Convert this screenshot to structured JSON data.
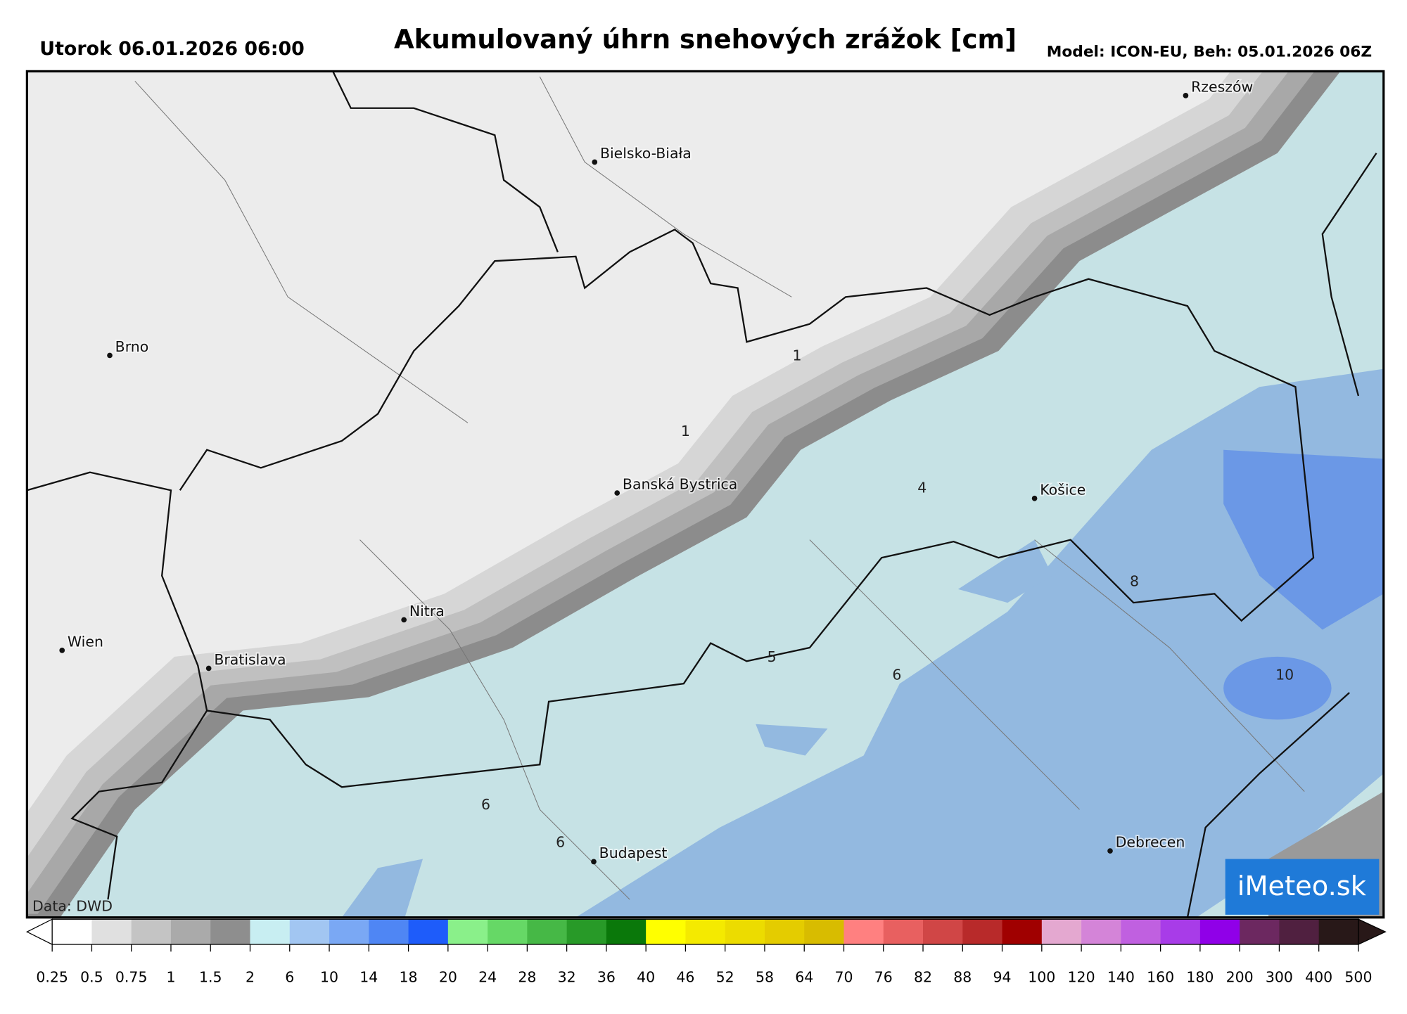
{
  "header": {
    "date": "Utorok 06.01.2026 06:00",
    "title": "Akumulovaný úhrn snehových zrážok [cm]",
    "model": "Model: ICON-EU, Beh: 05.01.2026 06Z"
  },
  "map": {
    "cities": [
      "Rzeszów",
      "Bielsko-Biała",
      "Brno",
      "Banská Bystrica",
      "Košice",
      "Nitra",
      "Wien",
      "Bratislava",
      "Budapest",
      "Debrecen"
    ],
    "contour_labels": [
      1,
      1,
      4,
      8,
      5,
      6,
      10,
      6,
      6
    ],
    "credit": "Data: DWD",
    "logo": "iMeteo.sk"
  },
  "legend": {
    "ticks": [
      0.25,
      0.5,
      0.75,
      1,
      1.5,
      2,
      6,
      10,
      14,
      18,
      20,
      24,
      28,
      32,
      36,
      40,
      46,
      52,
      58,
      64,
      70,
      76,
      82,
      88,
      94,
      100,
      120,
      140,
      160,
      180,
      200,
      300,
      400,
      500
    ],
    "colors": [
      "#ffffff",
      "#e0e0e0",
      "#c4c4c4",
      "#aaaaaa",
      "#8e8e8e",
      "#c8eef2",
      "#a2c6f2",
      "#7aa8f4",
      "#4f86f4",
      "#1e5cfa",
      "#8af08a",
      "#66d866",
      "#46b846",
      "#289a28",
      "#0a780a",
      "#ffff00",
      "#f4ea00",
      "#ecdc00",
      "#e4cc00",
      "#d8bc00",
      "#ff8080",
      "#e86060",
      "#d04646",
      "#b82a2a",
      "#a00000",
      "#e4a8d0",
      "#d484d8",
      "#c060e0",
      "#a83ce8",
      "#9000e8",
      "#6c2860",
      "#502040",
      "#281818"
    ]
  }
}
